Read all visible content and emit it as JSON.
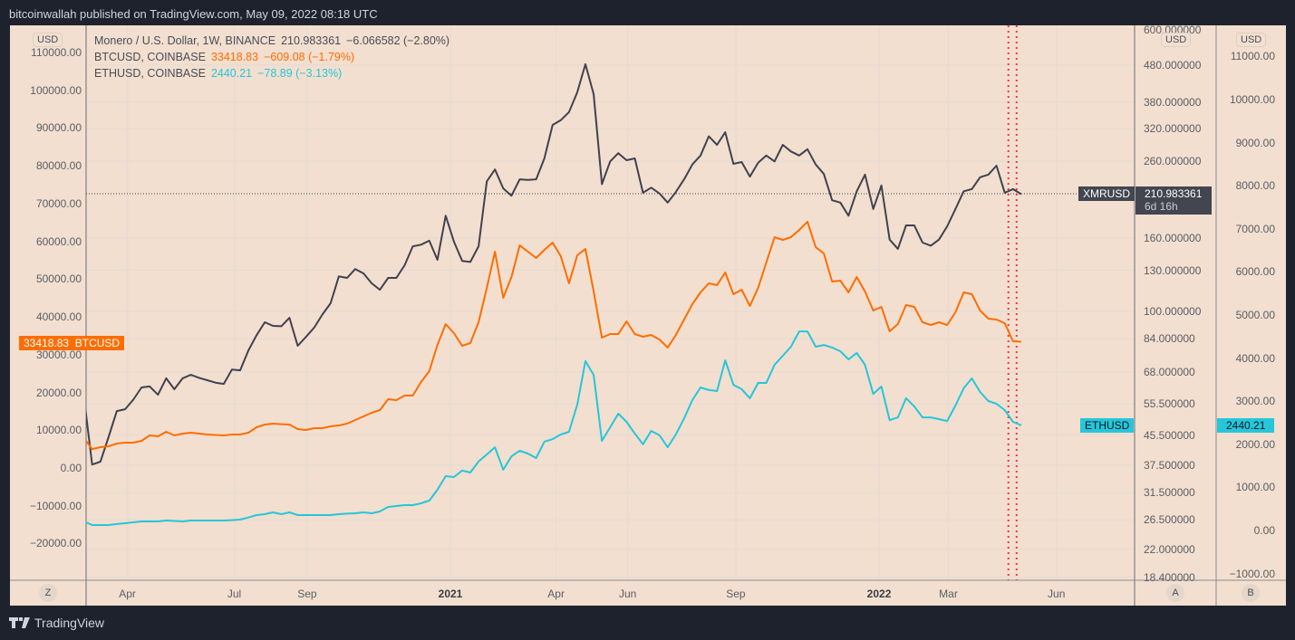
{
  "header": {
    "published": "bitcoinwallah published on TradingView.com, May 09, 2022 08:18 UTC"
  },
  "legend": [
    {
      "name": "Monero / U.S. Dollar, 1W, BINANCE",
      "price": "210.983361",
      "change": "−6.066582 (−2.80%)",
      "color": "#4a4d57"
    },
    {
      "name": "BTCUSD, COINBASE",
      "price": "33418.83",
      "change": "−609.08 (−1.79%)",
      "color": "#ff6d00"
    },
    {
      "name": "ETHUSD, COINBASE",
      "price": "2440.21",
      "change": "−78.89 (−3.13%)",
      "color": "#26c6da"
    }
  ],
  "axes": {
    "currency": "USD",
    "left_ticks": [
      "110000.00",
      "100000.00",
      "90000.00",
      "80000.00",
      "70000.00",
      "60000.00",
      "50000.00",
      "40000.00",
      "30000.00",
      "20000.00",
      "10000.00",
      "0.00",
      "−10000.00",
      "−20000.00"
    ],
    "mid_ticks": [
      "600.000000",
      "480.000000",
      "380.000000",
      "320.000000",
      "260.000000",
      "160.000000",
      "130.000000",
      "100.000000",
      "84.000000",
      "68.000000",
      "55.500000",
      "45.500000",
      "37.500000",
      "31.500000",
      "26.500000",
      "22.000000",
      "18.400000"
    ],
    "right_ticks": [
      "11000.00",
      "10000.00",
      "9000.00",
      "8000.00",
      "7000.00",
      "6000.00",
      "5000.00",
      "4000.00",
      "3000.00",
      "2000.00",
      "1000.00",
      "0.00",
      "−1000.00"
    ],
    "x_ticks": [
      {
        "label": "Apr",
        "date": "2020-04-01",
        "bold": false
      },
      {
        "label": "Jul",
        "date": "2020-07-01",
        "bold": false
      },
      {
        "label": "Sep",
        "date": "2020-09-01",
        "bold": false
      },
      {
        "label": "2021",
        "date": "2021-01-01",
        "bold": true
      },
      {
        "label": "Apr",
        "date": "2021-04-01",
        "bold": false
      },
      {
        "label": "Jun",
        "date": "2021-06-01",
        "bold": false
      },
      {
        "label": "Sep",
        "date": "2021-09-01",
        "bold": false
      },
      {
        "label": "2022",
        "date": "2022-01-01",
        "bold": true
      },
      {
        "label": "Mar",
        "date": "2022-03-01",
        "bold": false
      },
      {
        "label": "Jun",
        "date": "2022-06-01",
        "bold": false
      }
    ],
    "zoom_button": "Z",
    "mid_axis_button": "A",
    "right_axis_button": "B"
  },
  "price_labels": {
    "xmr_name": "XMRUSD",
    "xmr_price": "210.983361",
    "xmr_countdown": "6d 16h",
    "btc_price": "33418.83",
    "btc_name": "BTCUSD",
    "eth_name": "ETHUSD",
    "eth_price": "2440.21"
  },
  "colors": {
    "background": "#f2dfcf",
    "xmr": "#3f4250",
    "btc": "#ff6d00",
    "eth": "#26c6da",
    "marker_lines": "#f23645"
  },
  "chart_data": {
    "type": "line",
    "x": [
      "2020-02-24",
      "2020-03-02",
      "2020-03-09",
      "2020-03-16",
      "2020-03-23",
      "2020-03-30",
      "2020-04-06",
      "2020-04-13",
      "2020-04-20",
      "2020-04-27",
      "2020-05-04",
      "2020-05-11",
      "2020-05-18",
      "2020-05-25",
      "2020-06-01",
      "2020-06-08",
      "2020-06-15",
      "2020-06-22",
      "2020-06-29",
      "2020-07-06",
      "2020-07-13",
      "2020-07-20",
      "2020-07-27",
      "2020-08-03",
      "2020-08-10",
      "2020-08-17",
      "2020-08-24",
      "2020-08-31",
      "2020-09-07",
      "2020-09-14",
      "2020-09-21",
      "2020-09-28",
      "2020-10-05",
      "2020-10-12",
      "2020-10-19",
      "2020-10-26",
      "2020-11-02",
      "2020-11-09",
      "2020-11-16",
      "2020-11-23",
      "2020-11-30",
      "2020-12-07",
      "2020-12-14",
      "2020-12-21",
      "2020-12-28",
      "2021-01-04",
      "2021-01-11",
      "2021-01-18",
      "2021-01-25",
      "2021-02-01",
      "2021-02-08",
      "2021-02-15",
      "2021-02-22",
      "2021-03-01",
      "2021-03-08",
      "2021-03-15",
      "2021-03-22",
      "2021-03-29",
      "2021-04-05",
      "2021-04-12",
      "2021-04-19",
      "2021-04-26",
      "2021-05-03",
      "2021-05-10",
      "2021-05-17",
      "2021-05-24",
      "2021-05-31",
      "2021-06-07",
      "2021-06-14",
      "2021-06-21",
      "2021-06-28",
      "2021-07-05",
      "2021-07-12",
      "2021-07-19",
      "2021-07-26",
      "2021-08-02",
      "2021-08-09",
      "2021-08-16",
      "2021-08-23",
      "2021-08-30",
      "2021-09-06",
      "2021-09-13",
      "2021-09-20",
      "2021-09-27",
      "2021-10-04",
      "2021-10-11",
      "2021-10-18",
      "2021-10-25",
      "2021-11-01",
      "2021-11-08",
      "2021-11-15",
      "2021-11-22",
      "2021-11-29",
      "2021-12-06",
      "2021-12-13",
      "2021-12-20",
      "2021-12-27",
      "2022-01-03",
      "2022-01-10",
      "2022-01-17",
      "2022-01-24",
      "2022-01-31",
      "2022-02-07",
      "2022-02-14",
      "2022-02-21",
      "2022-02-28",
      "2022-03-07",
      "2022-03-14",
      "2022-03-21",
      "2022-03-28",
      "2022-04-04",
      "2022-04-11",
      "2022-04-18",
      "2022-04-25",
      "2022-05-02"
    ],
    "series": [
      {
        "name": "XMRUSD",
        "axis": "A (log)",
        "values": [
          58,
          37.7,
          38.4,
          45,
          53,
          53.6,
          57,
          61.6,
          62,
          58.8,
          65.3,
          60.9,
          65.3,
          66.8,
          65.5,
          64.5,
          63.5,
          63,
          69,
          68.7,
          78,
          86,
          93.3,
          91.2,
          91,
          96,
          80.3,
          85,
          90.2,
          98,
          105.3,
          125,
          123.8,
          131,
          127.4,
          119.6,
          114.8,
          123.8,
          123.8,
          134.2,
          151.4,
          153,
          156.9,
          138.9,
          184,
          156,
          138,
          137,
          151.4,
          229,
          247,
          219,
          209,
          232,
          231,
          232,
          265,
          328,
          338,
          356,
          404,
          483,
          399,
          225,
          260,
          274,
          262,
          265,
          213,
          220,
          212,
          200,
          214,
          232,
          255,
          270,
          305,
          289,
          313,
          256,
          259,
          236,
          258,
          270,
          260,
          289,
          277,
          270,
          281,
          255,
          240,
          203,
          200,
          184,
          215,
          239,
          192,
          223,
          158,
          149,
          173,
          173,
          155,
          152,
          158,
          172,
          192,
          215,
          218,
          235,
          239,
          253,
          213,
          218,
          210.983361
        ]
      },
      {
        "name": "BTCUSD",
        "axis": "left",
        "values": [
          7900,
          5000,
          5500,
          5750,
          6470,
          6700,
          6700,
          7190,
          8630,
          8390,
          9590,
          8630,
          9100,
          9350,
          9100,
          8870,
          8750,
          8630,
          8870,
          8870,
          9350,
          10780,
          11500,
          11740,
          11600,
          11500,
          10300,
          10060,
          10540,
          10540,
          11020,
          11260,
          11740,
          12700,
          13660,
          14620,
          15340,
          18210,
          17970,
          19170,
          19170,
          22770,
          25640,
          32590,
          38100,
          35700,
          32350,
          33070,
          38580,
          47690,
          57270,
          45050,
          50560,
          58950,
          57270,
          55600,
          57750,
          59670,
          56080,
          48890,
          56310,
          57990,
          46730,
          34500,
          35470,
          35470,
          38820,
          35470,
          34750,
          35230,
          34030,
          31870,
          35230,
          39300,
          43370,
          46490,
          48890,
          48410,
          51760,
          46010,
          47210,
          42890,
          47690,
          54400,
          61110,
          60390,
          61110,
          63020,
          65180,
          58470,
          56790,
          49370,
          49610,
          46490,
          50560,
          46730,
          41700,
          42650,
          36190,
          38100,
          43130,
          42650,
          38580,
          37860,
          38580,
          37860,
          41220,
          46490,
          46010,
          41700,
          39540,
          39300,
          38340,
          33550,
          33418.83
        ]
      },
      {
        "name": "ETHUSD",
        "axis": "B",
        "values": [
          210,
          126,
          126,
          126,
          150,
          168,
          190,
          210,
          210,
          210,
          231,
          220,
          210,
          231,
          231,
          231,
          231,
          231,
          240,
          252,
          300,
          357,
          378,
          420,
          378,
          420,
          357,
          357,
          357,
          357,
          357,
          378,
          390,
          399,
          420,
          399,
          441,
          546,
          567,
          588,
          588,
          630,
          693,
          945,
          1260,
          1240,
          1390,
          1345,
          1600,
          1765,
          1930,
          1410,
          1720,
          1850,
          1785,
          1680,
          2060,
          2120,
          2230,
          2290,
          2920,
          3930,
          3610,
          2080,
          2395,
          2710,
          2520,
          2250,
          2000,
          2310,
          2210,
          1930,
          2230,
          2600,
          3025,
          3320,
          3260,
          3235,
          3950,
          3380,
          3280,
          3070,
          3425,
          3425,
          3845,
          4055,
          4265,
          4620,
          4620,
          4265,
          4305,
          4245,
          4160,
          3970,
          4120,
          3845,
          3170,
          3340,
          2560,
          2625,
          3070,
          2880,
          2625,
          2625,
          2585,
          2540,
          2900,
          3300,
          3530,
          3215,
          3005,
          2940,
          2795,
          2520,
          2440.21
        ]
      }
    ],
    "left_ylim": [
      -25000,
      115000
    ],
    "mid_ylim": [
      18.4,
      600
    ],
    "mid_scale": "log",
    "right_ylim": [
      -1000,
      11000
    ],
    "marker_lines": [
      "2022-04-18",
      "2022-04-25"
    ],
    "grid": true
  },
  "branding": {
    "logo_text": "TradingView"
  }
}
